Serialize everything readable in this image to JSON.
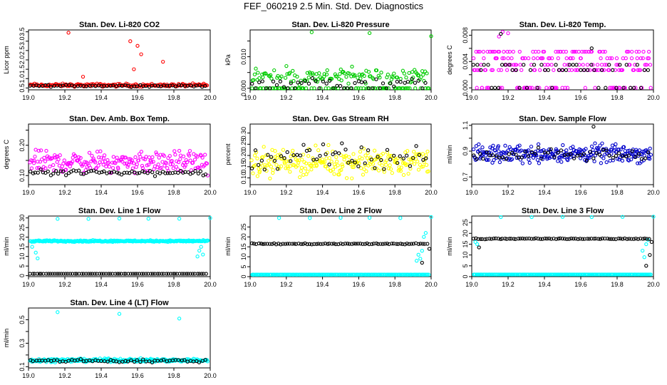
{
  "page": {
    "title": "FEF_060219  2.5 Min. Std. Dev. Diagnostics"
  },
  "chart_data": [
    {
      "type": "scatter",
      "title": "Stan. Dev. Li-820 CO2",
      "ylabel": "Licor ppm",
      "xlim": [
        19.0,
        20.0
      ],
      "ylim": [
        0.4,
        3.6
      ],
      "xticks": [
        19.0,
        19.2,
        19.4,
        19.6,
        19.8,
        20.0
      ],
      "yticks": [
        0.5,
        1.0,
        1.5,
        2.0,
        2.5,
        3.0,
        3.5
      ],
      "ytick_labels": [
        "0.5",
        "1.0",
        "1.5",
        "2.0",
        "2.5",
        "3.0",
        "3.5"
      ],
      "series": [
        {
          "color": "#ff0000",
          "base": 0.65,
          "spread": 0.12,
          "n": 160,
          "outliers": [
            [
              19.22,
              3.45
            ],
            [
              19.56,
              3.0
            ],
            [
              19.6,
              2.75
            ],
            [
              19.62,
              2.3
            ],
            [
              19.74,
              1.9
            ],
            [
              19.58,
              1.5
            ],
            [
              19.3,
              1.1
            ]
          ]
        },
        {
          "color": "#000000",
          "base": 0.62,
          "spread": 0.08,
          "n": 60,
          "outliers": []
        }
      ]
    },
    {
      "type": "scatter",
      "title": "Stan. Dev. Li-820 Pressure",
      "ylabel": "kPa",
      "xlim": [
        19.0,
        20.0
      ],
      "ylim": [
        -0.0005,
        0.0185
      ],
      "xticks": [
        19.0,
        19.2,
        19.4,
        19.6,
        19.8,
        20.0
      ],
      "yticks": [
        0.0,
        0.005,
        0.01,
        0.015
      ],
      "ytick_labels": [
        "0.000",
        "",
        "0.010",
        ""
      ],
      "series": [
        {
          "color": "#00cc00",
          "base": 0.004,
          "spread": 0.0035,
          "n": 200,
          "floor": 0.0,
          "outliers": [
            [
              19.34,
              0.0178
            ],
            [
              19.66,
              0.0175
            ],
            [
              20.0,
              0.0165
            ]
          ]
        },
        {
          "color": "#000000",
          "base": 0.002,
          "spread": 0.002,
          "n": 50,
          "floor": 0.0,
          "outliers": []
        }
      ]
    },
    {
      "type": "scatter",
      "title": "Stan. Dev. Li-820 Temp.",
      "ylabel": "degrees C",
      "xlim": [
        19.0,
        20.0
      ],
      "ylim": [
        -0.0003,
        0.0088
      ],
      "xticks": [
        19.0,
        19.2,
        19.4,
        19.6,
        19.8,
        20.0
      ],
      "yticks": [
        0.0,
        0.002,
        0.004,
        0.006,
        0.008
      ],
      "ytick_labels": [
        "0.000",
        "",
        "0.004",
        "",
        "0.008"
      ],
      "series": [
        {
          "color": "#ff00ff",
          "levels": [
            0.0,
            0.0027,
            0.0035,
            0.0045,
            0.0055
          ],
          "n": 220,
          "outliers": [
            [
              19.15,
              0.0078
            ],
            [
              19.17,
              0.0085
            ],
            [
              19.2,
              0.0083
            ]
          ]
        },
        {
          "color": "#000000",
          "levels": [
            0.0,
            0.0027,
            0.0035
          ],
          "n": 50,
          "outliers": [
            [
              19.16,
              0.0082
            ],
            [
              19.66,
              0.006
            ]
          ]
        }
      ]
    },
    {
      "type": "scatter",
      "title": "Stan. Dev. Amb. Box Temp.",
      "ylabel": "degrees C",
      "xlim": [
        19.0,
        20.0
      ],
      "ylim": [
        0.07,
        0.27
      ],
      "xticks": [
        19.0,
        19.2,
        19.4,
        19.6,
        19.8,
        20.0
      ],
      "yticks": [
        0.1,
        0.15,
        0.2,
        0.25
      ],
      "ytick_labels": [
        "0.10",
        "",
        "0.20",
        ""
      ],
      "series": [
        {
          "color": "#ff00ff",
          "base": 0.145,
          "spread": 0.05,
          "n": 220,
          "outliers": []
        },
        {
          "color": "#000000",
          "base": 0.11,
          "spread": 0.015,
          "n": 70,
          "outliers": []
        }
      ]
    },
    {
      "type": "scatter",
      "title": "Stan. Dev. Gas Stream RH",
      "ylabel": "percent",
      "xlim": [
        19.0,
        20.0
      ],
      "ylim": [
        0.07,
        0.34
      ],
      "xticks": [
        19.0,
        19.2,
        19.4,
        19.6,
        19.8,
        20.0
      ],
      "yticks": [
        0.1,
        0.15,
        0.2,
        0.25,
        0.3
      ],
      "ytick_labels": [
        "0.10",
        "0.15",
        "0.20",
        "0.25",
        "0.30"
      ],
      "series": [
        {
          "color": "#ffff00",
          "base": 0.17,
          "spread": 0.085,
          "n": 240,
          "outliers": []
        },
        {
          "color": "#000000",
          "base": 0.19,
          "spread": 0.09,
          "n": 55,
          "outliers": []
        }
      ]
    },
    {
      "type": "scatter",
      "title": "Stan. Dev. Sample Flow",
      "ylabel": "ml/min",
      "xlim": [
        19.0,
        20.0
      ],
      "ylim": [
        0.64,
        1.11
      ],
      "xticks": [
        19.0,
        19.2,
        19.4,
        19.6,
        19.8,
        20.0
      ],
      "yticks": [
        0.7,
        0.8,
        0.9,
        1.0,
        1.1
      ],
      "ytick_labels": [
        "0.7",
        "",
        "0.9",
        "",
        "1.1"
      ],
      "series": [
        {
          "color": "#0000cc",
          "base": 0.88,
          "spread": 0.1,
          "n": 260,
          "outliers": []
        },
        {
          "color": "#000000",
          "base": 0.87,
          "spread": 0.07,
          "n": 55,
          "outliers": [
            [
              19.67,
              1.09
            ]
          ]
        }
      ]
    },
    {
      "type": "scatter",
      "title": "Stan. Dev. Line 1 Flow",
      "ylabel": "ml/min",
      "xlim": [
        19.0,
        20.0
      ],
      "ylim": [
        -0.5,
        31
      ],
      "xticks": [
        19.0,
        19.2,
        19.4,
        19.6,
        19.8,
        20.0
      ],
      "yticks": [
        0,
        5,
        10,
        15,
        20,
        25,
        30
      ],
      "ytick_labels": [
        "0",
        "5",
        "10",
        "15",
        "20",
        "25",
        "30"
      ],
      "series": [
        {
          "color": "#00ffff",
          "base": 18,
          "spread": 0.6,
          "n": 300,
          "outliers": [
            [
              19.16,
              29.5
            ],
            [
              19.33,
              29.5
            ],
            [
              19.5,
              29.7
            ],
            [
              19.66,
              29.6
            ],
            [
              19.83,
              29.6
            ],
            [
              20.0,
              30.0
            ],
            [
              19.02,
              15
            ],
            [
              19.04,
              12
            ],
            [
              19.05,
              9
            ],
            [
              19.93,
              10
            ],
            [
              19.94,
              13
            ],
            [
              19.95,
              15
            ],
            [
              19.96,
              11
            ]
          ]
        },
        {
          "color": "#000000",
          "base": 1.0,
          "spread": 0.0,
          "n": 80,
          "outliers": []
        }
      ]
    },
    {
      "type": "scatter",
      "title": "Stan. Dev. Line 2 Flow",
      "ylabel": "ml/min",
      "xlim": [
        19.0,
        20.0
      ],
      "ylim": [
        0,
        30.5
      ],
      "xticks": [
        19.0,
        19.2,
        19.4,
        19.6,
        19.8,
        20.0
      ],
      "yticks": [
        0,
        5,
        10,
        15,
        20,
        25
      ],
      "ytick_labels": [
        "0",
        "5",
        "10",
        "15",
        "20",
        "25"
      ],
      "series": [
        {
          "color": "#00ffff",
          "base": 1.0,
          "spread": 0.0,
          "n": 200,
          "outliers": [
            [
              19.16,
              29.5
            ],
            [
              19.33,
              29.5
            ],
            [
              19.5,
              29.6
            ],
            [
              19.66,
              29.6
            ],
            [
              19.83,
              29.5
            ],
            [
              20.0,
              30.0
            ],
            [
              19.93,
              11
            ],
            [
              19.94,
              9
            ],
            [
              19.95,
              13
            ],
            [
              19.96,
              20
            ],
            [
              19.97,
              22
            ],
            [
              19.92,
              8
            ]
          ]
        },
        {
          "color": "#000000",
          "base": 16.5,
          "spread": 0.4,
          "n": 80,
          "outliers": [
            [
              19.95,
              7
            ],
            [
              19.99,
              14
            ]
          ]
        }
      ]
    },
    {
      "type": "scatter",
      "title": "Stan. Dev. Line 3 Flow",
      "ylabel": "ml/min",
      "xlim": [
        19.0,
        20.0
      ],
      "ylim": [
        0,
        28
      ],
      "xticks": [
        19.0,
        19.2,
        19.4,
        19.6,
        19.8,
        20.0
      ],
      "yticks": [
        0,
        5,
        10,
        15,
        20,
        25
      ],
      "ytick_labels": [
        "0",
        "5",
        "10",
        "15",
        "20",
        "25"
      ],
      "series": [
        {
          "color": "#00ffff",
          "base": 1.0,
          "spread": 0.0,
          "n": 200,
          "outliers": [
            [
              19.16,
              27.5
            ],
            [
              19.33,
              27.5
            ],
            [
              19.5,
              27.6
            ],
            [
              19.66,
              27.5
            ],
            [
              19.83,
              27.6
            ],
            [
              20.0,
              27.8
            ],
            [
              19.02,
              16
            ],
            [
              19.03,
              15
            ],
            [
              19.94,
              12
            ],
            [
              19.95,
              9
            ],
            [
              19.96,
              15
            ],
            [
              19.97,
              17
            ]
          ]
        },
        {
          "color": "#000000",
          "base": 17.5,
          "spread": 0.4,
          "n": 80,
          "outliers": [
            [
              19.04,
              13.5
            ],
            [
              19.96,
              5
            ],
            [
              19.98,
              10
            ],
            [
              19.99,
              16
            ]
          ]
        }
      ]
    },
    {
      "type": "scatter",
      "title": "Stan. Dev. Line 4 (LT) Flow",
      "ylabel": "ml/min",
      "xlim": [
        19.0,
        20.0
      ],
      "ylim": [
        0.09,
        0.6
      ],
      "xticks": [
        19.0,
        19.2,
        19.4,
        19.6,
        19.8,
        20.0
      ],
      "yticks": [
        0.1,
        0.2,
        0.3,
        0.4,
        0.5
      ],
      "ytick_labels": [
        "0.1",
        "",
        "0.3",
        "",
        "0.5"
      ],
      "series": [
        {
          "color": "#00ffff",
          "base": 0.155,
          "spread": 0.02,
          "n": 300,
          "outliers": [
            [
              19.16,
              0.565
            ],
            [
              19.5,
              0.55
            ],
            [
              19.83,
              0.51
            ]
          ]
        },
        {
          "color": "#000000",
          "base": 0.15,
          "spread": 0.02,
          "n": 60,
          "outliers": []
        }
      ]
    }
  ]
}
